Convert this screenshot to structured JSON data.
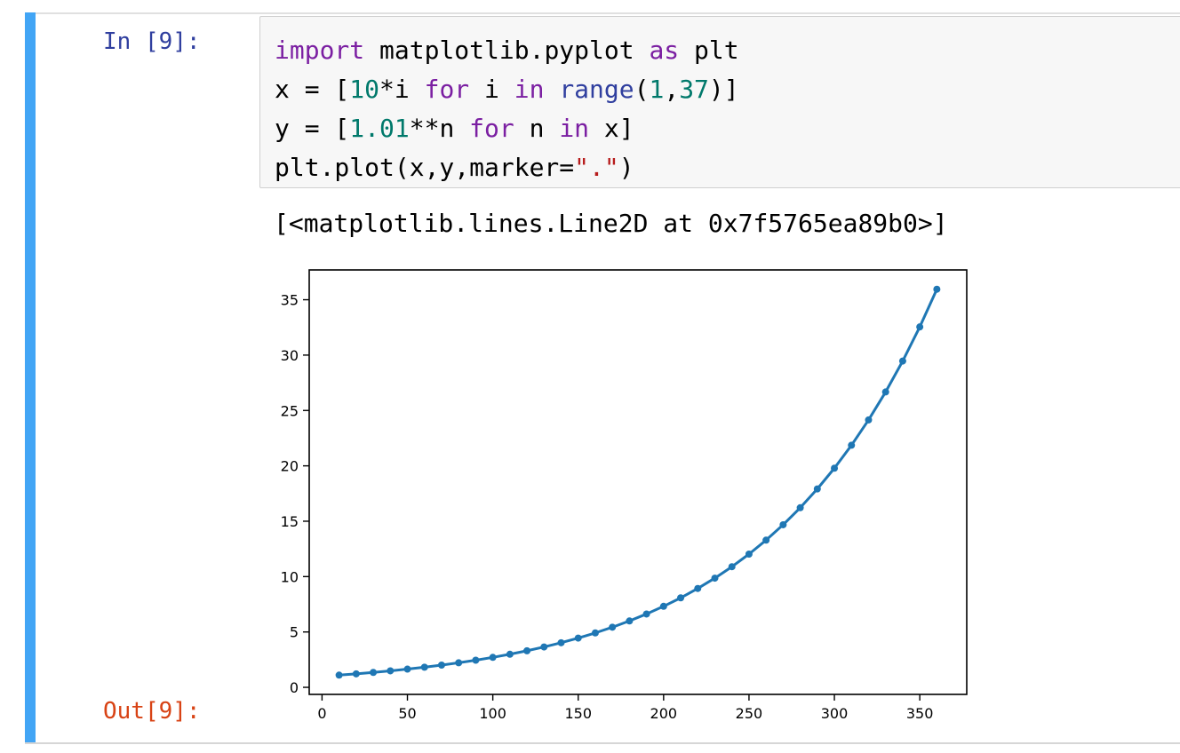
{
  "cell": {
    "in_prompt": "In [9]:",
    "out_prompt": "Out[9]:",
    "code_lines": [
      [
        {
          "t": "import",
          "c": "kw"
        },
        {
          "t": " matplotlib.pyplot ",
          "c": ""
        },
        {
          "t": "as",
          "c": "kw"
        },
        {
          "t": " plt",
          "c": ""
        }
      ],
      [
        {
          "t": "x = [",
          "c": ""
        },
        {
          "t": "10",
          "c": "num"
        },
        {
          "t": "*i ",
          "c": ""
        },
        {
          "t": "for",
          "c": "kw"
        },
        {
          "t": " i ",
          "c": ""
        },
        {
          "t": "in",
          "c": "kw"
        },
        {
          "t": " ",
          "c": ""
        },
        {
          "t": "range",
          "c": "builtin"
        },
        {
          "t": "(",
          "c": ""
        },
        {
          "t": "1",
          "c": "num"
        },
        {
          "t": ",",
          "c": ""
        },
        {
          "t": "37",
          "c": "num"
        },
        {
          "t": ")]",
          "c": ""
        }
      ],
      [
        {
          "t": "y = [",
          "c": ""
        },
        {
          "t": "1.01",
          "c": "num"
        },
        {
          "t": "**n ",
          "c": ""
        },
        {
          "t": "for",
          "c": "kw"
        },
        {
          "t": " n ",
          "c": ""
        },
        {
          "t": "in",
          "c": "kw"
        },
        {
          "t": " x]",
          "c": ""
        }
      ],
      [
        {
          "t": "plt.plot(x,y,marker=",
          "c": ""
        },
        {
          "t": "\".\"",
          "c": "str"
        },
        {
          "t": ")",
          "c": ""
        }
      ]
    ],
    "execute_result": "[<matplotlib.lines.Line2D at 0x7f5765ea89b0>]"
  },
  "chart_data": {
    "type": "line",
    "marker": ".",
    "color": "#1f77b4",
    "x": [
      10,
      20,
      30,
      40,
      50,
      60,
      70,
      80,
      90,
      100,
      110,
      120,
      130,
      140,
      150,
      160,
      170,
      180,
      190,
      200,
      210,
      220,
      230,
      240,
      250,
      260,
      270,
      280,
      290,
      300,
      310,
      320,
      330,
      340,
      350,
      360
    ],
    "y": [
      1.1046,
      1.2202,
      1.3478,
      1.4889,
      1.6446,
      1.8167,
      2.0068,
      2.2167,
      2.4486,
      2.7048,
      2.9878,
      3.3004,
      3.6457,
      4.0271,
      4.4484,
      4.9138,
      5.4279,
      5.9958,
      6.6231,
      7.316,
      8.0814,
      8.9269,
      9.8609,
      10.8926,
      12.0322,
      13.2911,
      14.6816,
      16.2177,
      17.9144,
      19.7887,
      21.859,
      24.1459,
      26.6722,
      29.4627,
      32.5453,
      35.9502
    ],
    "xticks": [
      0,
      50,
      100,
      150,
      200,
      250,
      300,
      350
    ],
    "yticks": [
      0,
      5,
      10,
      15,
      20,
      25,
      30,
      35
    ],
    "xlim": [
      -7.5,
      377.5
    ],
    "ylim": [
      -0.638,
      37.69
    ],
    "grid": false,
    "xlabel": "",
    "ylabel": "",
    "title": ""
  }
}
